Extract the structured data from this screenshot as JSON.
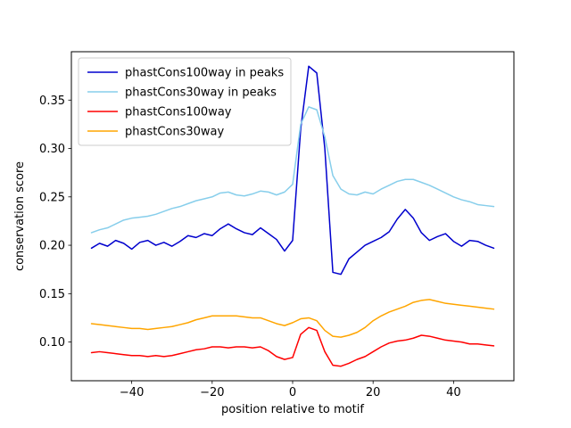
{
  "chart_data": {
    "type": "line",
    "title": "",
    "xlabel": "position relative to motif",
    "ylabel": "conservation score",
    "xlim": [
      -55,
      55
    ],
    "ylim": [
      0.06,
      0.4
    ],
    "xticks": [
      -40,
      -20,
      0,
      20,
      40
    ],
    "yticks": [
      0.1,
      0.15,
      0.2,
      0.25,
      0.3,
      0.35
    ],
    "grid": false,
    "legend_position": "upper left",
    "x": [
      -50,
      -48,
      -46,
      -44,
      -42,
      -40,
      -38,
      -36,
      -34,
      -32,
      -30,
      -28,
      -26,
      -24,
      -22,
      -20,
      -18,
      -16,
      -14,
      -12,
      -10,
      -8,
      -6,
      -4,
      -2,
      0,
      2,
      4,
      6,
      8,
      10,
      12,
      14,
      16,
      18,
      20,
      22,
      24,
      26,
      28,
      30,
      32,
      34,
      36,
      38,
      40,
      42,
      44,
      46,
      48,
      50
    ],
    "series": [
      {
        "name": "phastCons100way in peaks",
        "color": "#0000cd",
        "values": [
          0.197,
          0.202,
          0.199,
          0.205,
          0.202,
          0.196,
          0.203,
          0.205,
          0.2,
          0.203,
          0.199,
          0.204,
          0.21,
          0.208,
          0.212,
          0.21,
          0.217,
          0.222,
          0.217,
          0.213,
          0.211,
          0.218,
          0.212,
          0.206,
          0.194,
          0.205,
          0.32,
          0.385,
          0.378,
          0.3,
          0.172,
          0.17,
          0.186,
          0.193,
          0.2,
          0.204,
          0.208,
          0.214,
          0.227,
          0.237,
          0.228,
          0.213,
          0.205,
          0.209,
          0.212,
          0.204,
          0.199,
          0.205,
          0.204,
          0.2,
          0.197
        ]
      },
      {
        "name": "phastCons30way in peaks",
        "color": "#87ceeb",
        "values": [
          0.213,
          0.216,
          0.218,
          0.222,
          0.226,
          0.228,
          0.229,
          0.23,
          0.232,
          0.235,
          0.238,
          0.24,
          0.243,
          0.246,
          0.248,
          0.25,
          0.254,
          0.255,
          0.252,
          0.251,
          0.253,
          0.256,
          0.255,
          0.252,
          0.255,
          0.263,
          0.325,
          0.343,
          0.34,
          0.312,
          0.272,
          0.258,
          0.253,
          0.252,
          0.255,
          0.253,
          0.258,
          0.262,
          0.266,
          0.268,
          0.268,
          0.265,
          0.262,
          0.258,
          0.254,
          0.25,
          0.247,
          0.245,
          0.242,
          0.241,
          0.24
        ]
      },
      {
        "name": "phastCons100way",
        "color": "#ff0000",
        "values": [
          0.089,
          0.09,
          0.089,
          0.088,
          0.087,
          0.086,
          0.086,
          0.085,
          0.086,
          0.085,
          0.086,
          0.088,
          0.09,
          0.092,
          0.093,
          0.095,
          0.095,
          0.094,
          0.095,
          0.095,
          0.094,
          0.095,
          0.091,
          0.085,
          0.082,
          0.084,
          0.108,
          0.115,
          0.112,
          0.09,
          0.076,
          0.075,
          0.078,
          0.082,
          0.085,
          0.09,
          0.095,
          0.099,
          0.101,
          0.102,
          0.104,
          0.107,
          0.106,
          0.104,
          0.102,
          0.101,
          0.1,
          0.098,
          0.098,
          0.097,
          0.096
        ]
      },
      {
        "name": "phastCons30way",
        "color": "#ffa500",
        "values": [
          0.119,
          0.118,
          0.117,
          0.116,
          0.115,
          0.114,
          0.114,
          0.113,
          0.114,
          0.115,
          0.116,
          0.118,
          0.12,
          0.123,
          0.125,
          0.127,
          0.127,
          0.127,
          0.127,
          0.126,
          0.125,
          0.125,
          0.122,
          0.119,
          0.117,
          0.12,
          0.124,
          0.125,
          0.122,
          0.112,
          0.106,
          0.105,
          0.107,
          0.11,
          0.115,
          0.122,
          0.127,
          0.131,
          0.134,
          0.137,
          0.141,
          0.143,
          0.144,
          0.142,
          0.14,
          0.139,
          0.138,
          0.137,
          0.136,
          0.135,
          0.134
        ]
      }
    ],
    "style": {
      "background": "#ffffff",
      "spine_color": "#000000",
      "legend_border": "#cccccc",
      "line_width": 1.5
    }
  }
}
